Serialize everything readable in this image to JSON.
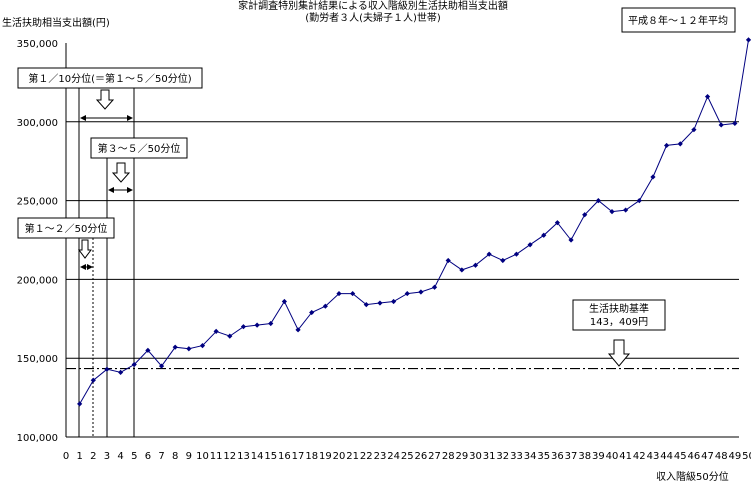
{
  "chart_data": {
    "type": "line",
    "title": "家計調査特別集計結果による収入階級別生活扶助相当支出額",
    "subtitle": "(勤労者３人(夫婦子１人)世帯)",
    "ylabel": "生活扶助相当支出額(円)",
    "xlabel": "収入階級50分位",
    "period_box": "平成８年～１２年平均",
    "ylim": [
      100000,
      350000
    ],
    "yticks": [
      100000,
      150000,
      200000,
      250000,
      300000,
      350000
    ],
    "ytick_labels": [
      "100,000",
      "150,000",
      "200,000",
      "250,000",
      "300,000",
      "350,000"
    ],
    "gridlines": [
      150000,
      200000,
      250000,
      300000
    ],
    "xlim": [
      0,
      50
    ],
    "xticks": [
      0,
      1,
      2,
      3,
      4,
      5,
      6,
      7,
      8,
      9,
      10,
      11,
      12,
      13,
      14,
      15,
      16,
      17,
      18,
      19,
      20,
      21,
      22,
      23,
      24,
      25,
      26,
      27,
      28,
      29,
      30,
      31,
      32,
      33,
      34,
      35,
      36,
      37,
      38,
      39,
      40,
      41,
      42,
      43,
      44,
      45,
      46,
      47,
      48,
      49,
      50
    ],
    "xtick_labels": [
      "0",
      "1",
      "2",
      "3",
      "4",
      "5",
      "6",
      "7",
      "8",
      "9",
      "10",
      "11",
      "12",
      "13",
      "14",
      "15",
      "16",
      "17",
      "18",
      "19",
      "20",
      "21",
      "22",
      "23",
      "24",
      "25",
      "26",
      "27",
      "28",
      "29",
      "30",
      "31",
      "32",
      "33",
      "34",
      "35",
      "36",
      "37",
      "38",
      "39",
      "40",
      "41",
      "42",
      "43",
      "44",
      "45",
      "46",
      "47",
      "48",
      "49",
      "50"
    ],
    "series": [
      {
        "x": [
          1,
          2,
          3,
          4,
          5,
          6,
          7,
          8,
          9,
          10,
          11,
          12,
          13,
          14,
          15,
          16,
          17,
          18,
          19,
          20,
          21,
          22,
          23,
          24,
          25,
          26,
          27,
          28,
          29,
          30,
          31,
          32,
          33,
          34,
          35,
          36,
          37,
          38,
          39,
          40,
          41,
          42,
          43,
          44,
          45,
          46,
          47,
          48,
          49,
          50
        ],
        "values": [
          121000,
          136000,
          143000,
          141000,
          146000,
          155000,
          145000,
          157000,
          156000,
          158000,
          167000,
          164000,
          170000,
          171000,
          172000,
          186000,
          168000,
          179000,
          183000,
          191000,
          191000,
          184000,
          185000,
          186000,
          191000,
          192000,
          195000,
          212000,
          206000,
          209000,
          216000,
          212000,
          216000,
          222000,
          228000,
          236000,
          225000,
          241000,
          250000,
          243000,
          244000,
          250000,
          265000,
          285000,
          286000,
          295000,
          316000,
          298000,
          299000,
          352000
        ],
        "color": "#000080"
      }
    ],
    "reference_line": {
      "value": 143409,
      "style": "dash-dot"
    },
    "annotations": {
      "q1_10": "第１／10分位(＝第１～５／50分位)",
      "q3_5": "第３～５／50分位",
      "q1_2": "第１～２／50分位",
      "standard": [
        "生活扶助基準",
        "143，409円"
      ]
    }
  }
}
